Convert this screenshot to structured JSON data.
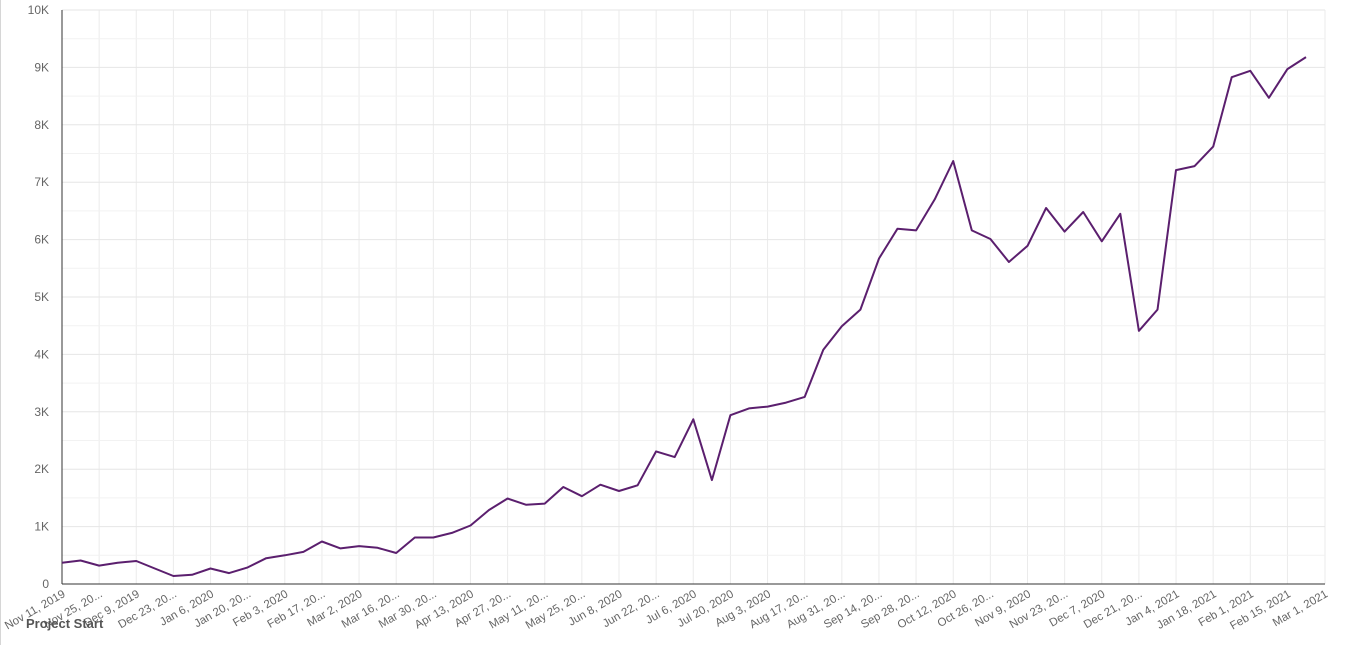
{
  "chart_data": {
    "type": "line",
    "title": "",
    "xlabel": "Project Start",
    "ylabel": "",
    "ylim": [
      0,
      10000
    ],
    "yticks": [
      0,
      1000,
      2000,
      3000,
      4000,
      5000,
      6000,
      7000,
      8000,
      9000,
      10000
    ],
    "ytick_labels": [
      "0",
      "1K",
      "2K",
      "3K",
      "4K",
      "5K",
      "6K",
      "7K",
      "8K",
      "9K",
      "10K"
    ],
    "grid": true,
    "line_color": "#5b1f6e",
    "xtick_labels": [
      "Nov 11, 2019",
      "Nov 25, 20...",
      "Dec 9, 2019",
      "Dec 23, 20...",
      "Jan 6, 2020",
      "Jan 20, 20...",
      "Feb 3, 2020",
      "Feb 17, 20...",
      "Mar 2, 2020",
      "Mar 16, 20...",
      "Mar 30, 20...",
      "Apr 13, 2020",
      "Apr 27, 20...",
      "May 11, 20...",
      "May 25, 20...",
      "Jun 8, 2020",
      "Jun 22, 20...",
      "Jul 6, 2020",
      "Jul 20, 2020",
      "Aug 3, 2020",
      "Aug 17, 20...",
      "Aug 31, 20...",
      "Sep 14, 20...",
      "Sep 28, 20...",
      "Oct 12, 2020",
      "Oct 26, 20...",
      "Nov 9, 2020",
      "Nov 23, 20...",
      "Dec 7, 2020",
      "Dec 21, 20...",
      "Jan 4, 2021",
      "Jan 18, 2021",
      "Feb 1, 2021",
      "Feb 15, 2021",
      "Mar 1, 2021"
    ],
    "series": [
      {
        "values": [
          370,
          410,
          320,
          370,
          400,
          270,
          140,
          160,
          270,
          190,
          290,
          450,
          500,
          560,
          740,
          620,
          660,
          630,
          540,
          810,
          810,
          890,
          1020,
          1290,
          1490,
          1380,
          1400,
          1690,
          1530,
          1730,
          1620,
          1720,
          2310,
          2210,
          2870,
          1810,
          2940,
          3060,
          3090,
          3160,
          3260,
          4080,
          4490,
          4780,
          5670,
          6190,
          6160,
          6700,
          7370,
          6160,
          6010,
          5610,
          5890,
          6550,
          6140,
          6480,
          5970,
          6450,
          4410,
          4780,
          7210,
          7280,
          7620,
          8830,
          8940,
          8470,
          8970,
          9180
        ]
      }
    ]
  }
}
